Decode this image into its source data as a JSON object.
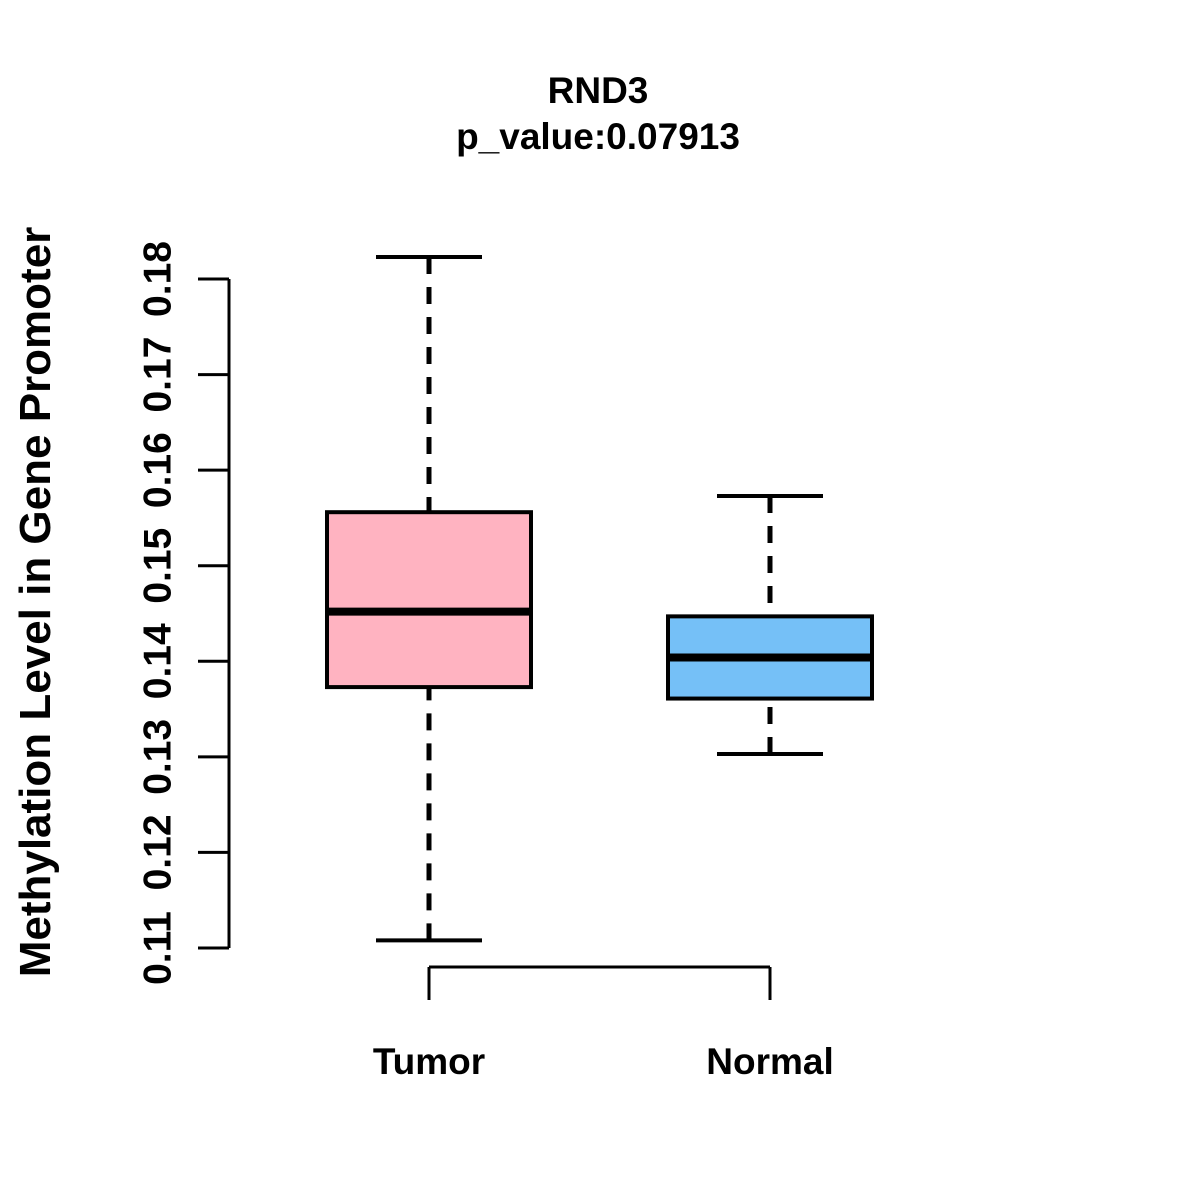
{
  "title": "RND3",
  "subtitle": "p_value:0.07913",
  "chart_data": {
    "type": "boxplot",
    "title": "RND3",
    "subtitle": "p_value:0.07913",
    "ylabel": "Methylation Level in Gene Promoter",
    "xlabel": "",
    "categories": [
      "Tumor",
      "Normal"
    ],
    "ylim": [
      0.11,
      0.185
    ],
    "yticks": [
      0.11,
      0.12,
      0.13,
      0.14,
      0.15,
      0.16,
      0.17,
      0.18
    ],
    "grid": false,
    "legend_position": "none",
    "whisker_line_style": "dashed",
    "series": [
      {
        "name": "Tumor",
        "lower_whisker": 0.1108,
        "q1": 0.1373,
        "median": 0.1452,
        "q3": 0.1556,
        "upper_whisker": 0.1823,
        "fill_color": "#FFB3C1"
      },
      {
        "name": "Normal",
        "lower_whisker": 0.1303,
        "q1": 0.1361,
        "median": 0.1404,
        "q3": 0.1447,
        "upper_whisker": 0.1573,
        "fill_color": "#75C0F7"
      }
    ],
    "stroke_color": "#000000",
    "background_color": "#FFFFFF"
  }
}
